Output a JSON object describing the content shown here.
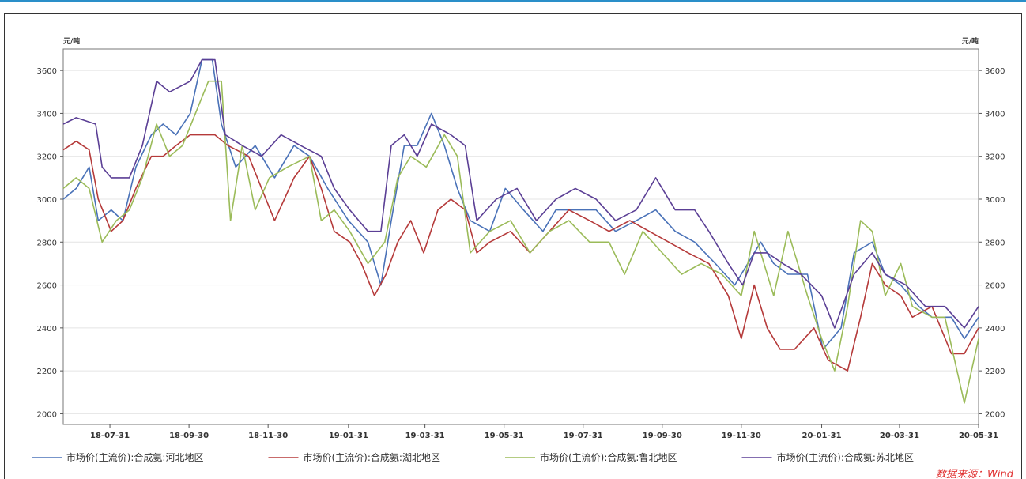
{
  "chart_data": {
    "type": "line",
    "y_unit_left": "元/吨",
    "y_unit_right": "元/吨",
    "ylim": [
      1950,
      3700
    ],
    "y_ticks": [
      2000,
      2200,
      2400,
      2600,
      2800,
      3000,
      3200,
      3400,
      3600
    ],
    "x_range": [
      "2018-06-25",
      "2020-05-31"
    ],
    "x_ticks": [
      "18-07-31",
      "18-09-30",
      "18-11-30",
      "19-01-31",
      "19-03-31",
      "19-05-31",
      "19-07-31",
      "19-09-30",
      "19-11-30",
      "20-01-31",
      "20-03-31",
      "20-05-31"
    ],
    "grid": "horizontal",
    "legend_position": "bottom",
    "source": "数据来源：Wind",
    "series": [
      {
        "name": "市场价(主流价):合成氨:河北地区",
        "color": "#4a72b8",
        "points": [
          [
            "2018-06-25",
            3000
          ],
          [
            "2018-07-05",
            3050
          ],
          [
            "2018-07-15",
            3150
          ],
          [
            "2018-07-22",
            2900
          ],
          [
            "2018-08-01",
            2950
          ],
          [
            "2018-08-10",
            2900
          ],
          [
            "2018-08-20",
            3150
          ],
          [
            "2018-09-01",
            3300
          ],
          [
            "2018-09-10",
            3350
          ],
          [
            "2018-09-20",
            3300
          ],
          [
            "2018-10-01",
            3400
          ],
          [
            "2018-10-10",
            3650
          ],
          [
            "2018-10-18",
            3650
          ],
          [
            "2018-10-25",
            3350
          ],
          [
            "2018-11-05",
            3150
          ],
          [
            "2018-11-20",
            3250
          ],
          [
            "2018-12-05",
            3100
          ],
          [
            "2018-12-20",
            3250
          ],
          [
            "2019-01-01",
            3200
          ],
          [
            "2019-01-15",
            3050
          ],
          [
            "2019-01-31",
            2900
          ],
          [
            "2019-02-15",
            2800
          ],
          [
            "2019-02-25",
            2600
          ],
          [
            "2019-03-05",
            2900
          ],
          [
            "2019-03-15",
            3250
          ],
          [
            "2019-03-25",
            3250
          ],
          [
            "2019-04-05",
            3400
          ],
          [
            "2019-04-15",
            3250
          ],
          [
            "2019-04-25",
            3050
          ],
          [
            "2019-05-05",
            2900
          ],
          [
            "2019-05-20",
            2850
          ],
          [
            "2019-06-01",
            3050
          ],
          [
            "2019-06-15",
            2950
          ],
          [
            "2019-06-30",
            2850
          ],
          [
            "2019-07-10",
            2950
          ],
          [
            "2019-07-25",
            2950
          ],
          [
            "2019-08-10",
            2950
          ],
          [
            "2019-08-25",
            2850
          ],
          [
            "2019-09-10",
            2900
          ],
          [
            "2019-09-25",
            2950
          ],
          [
            "2019-10-10",
            2850
          ],
          [
            "2019-10-25",
            2800
          ],
          [
            "2019-11-10",
            2700
          ],
          [
            "2019-11-25",
            2600
          ],
          [
            "2019-12-05",
            2700
          ],
          [
            "2019-12-15",
            2800
          ],
          [
            "2019-12-25",
            2700
          ],
          [
            "2020-01-05",
            2650
          ],
          [
            "2020-01-20",
            2650
          ],
          [
            "2020-02-01",
            2300
          ],
          [
            "2020-02-15",
            2400
          ],
          [
            "2020-02-25",
            2750
          ],
          [
            "2020-03-10",
            2800
          ],
          [
            "2020-03-20",
            2650
          ],
          [
            "2020-04-01",
            2600
          ],
          [
            "2020-04-15",
            2500
          ],
          [
            "2020-04-25",
            2450
          ],
          [
            "2020-05-10",
            2450
          ],
          [
            "2020-05-20",
            2350
          ],
          [
            "2020-05-31",
            2450
          ]
        ]
      },
      {
        "name": "市场价(主流价):合成氨:湖北地区",
        "color": "#b53a3a",
        "points": [
          [
            "2018-06-25",
            3230
          ],
          [
            "2018-07-05",
            3270
          ],
          [
            "2018-07-15",
            3230
          ],
          [
            "2018-07-22",
            3000
          ],
          [
            "2018-08-01",
            2850
          ],
          [
            "2018-08-10",
            2900
          ],
          [
            "2018-08-20",
            3050
          ],
          [
            "2018-09-01",
            3200
          ],
          [
            "2018-09-10",
            3200
          ],
          [
            "2018-09-20",
            3250
          ],
          [
            "2018-10-01",
            3300
          ],
          [
            "2018-10-20",
            3300
          ],
          [
            "2018-10-30",
            3250
          ],
          [
            "2018-11-15",
            3200
          ],
          [
            "2018-11-25",
            3050
          ],
          [
            "2018-12-05",
            2900
          ],
          [
            "2018-12-20",
            3100
          ],
          [
            "2019-01-01",
            3200
          ],
          [
            "2019-01-10",
            3050
          ],
          [
            "2019-01-20",
            2850
          ],
          [
            "2019-02-01",
            2800
          ],
          [
            "2019-02-10",
            2700
          ],
          [
            "2019-02-20",
            2550
          ],
          [
            "2019-03-01",
            2650
          ],
          [
            "2019-03-10",
            2800
          ],
          [
            "2019-03-20",
            2900
          ],
          [
            "2019-03-30",
            2750
          ],
          [
            "2019-04-10",
            2950
          ],
          [
            "2019-04-20",
            3000
          ],
          [
            "2019-05-01",
            2950
          ],
          [
            "2019-05-10",
            2750
          ],
          [
            "2019-05-20",
            2800
          ],
          [
            "2019-06-05",
            2850
          ],
          [
            "2019-06-20",
            2750
          ],
          [
            "2019-07-05",
            2850
          ],
          [
            "2019-07-20",
            2950
          ],
          [
            "2019-08-05",
            2900
          ],
          [
            "2019-08-20",
            2850
          ],
          [
            "2019-09-05",
            2900
          ],
          [
            "2019-09-20",
            2850
          ],
          [
            "2019-10-05",
            2800
          ],
          [
            "2019-10-20",
            2750
          ],
          [
            "2019-11-05",
            2700
          ],
          [
            "2019-11-20",
            2550
          ],
          [
            "2019-11-30",
            2350
          ],
          [
            "2019-12-10",
            2600
          ],
          [
            "2019-12-20",
            2400
          ],
          [
            "2019-12-30",
            2300
          ],
          [
            "2020-01-10",
            2300
          ],
          [
            "2020-01-25",
            2400
          ],
          [
            "2020-02-05",
            2250
          ],
          [
            "2020-02-20",
            2200
          ],
          [
            "2020-03-01",
            2450
          ],
          [
            "2020-03-10",
            2700
          ],
          [
            "2020-03-20",
            2600
          ],
          [
            "2020-04-01",
            2550
          ],
          [
            "2020-04-10",
            2450
          ],
          [
            "2020-04-25",
            2500
          ],
          [
            "2020-05-10",
            2280
          ],
          [
            "2020-05-20",
            2280
          ],
          [
            "2020-05-31",
            2400
          ]
        ]
      },
      {
        "name": "市场价(主流价):合成氨:鲁北地区",
        "color": "#9bbb59",
        "points": [
          [
            "2018-06-25",
            3050
          ],
          [
            "2018-07-05",
            3100
          ],
          [
            "2018-07-15",
            3050
          ],
          [
            "2018-07-25",
            2800
          ],
          [
            "2018-08-05",
            2900
          ],
          [
            "2018-08-15",
            2950
          ],
          [
            "2018-08-25",
            3100
          ],
          [
            "2018-09-05",
            3350
          ],
          [
            "2018-09-15",
            3200
          ],
          [
            "2018-09-25",
            3250
          ],
          [
            "2018-10-05",
            3400
          ],
          [
            "2018-10-15",
            3550
          ],
          [
            "2018-10-25",
            3550
          ],
          [
            "2018-11-01",
            2900
          ],
          [
            "2018-11-10",
            3250
          ],
          [
            "2018-11-20",
            2950
          ],
          [
            "2018-12-01",
            3100
          ],
          [
            "2018-12-15",
            3150
          ],
          [
            "2019-01-01",
            3200
          ],
          [
            "2019-01-10",
            2900
          ],
          [
            "2019-01-20",
            2950
          ],
          [
            "2019-02-01",
            2850
          ],
          [
            "2019-02-15",
            2700
          ],
          [
            "2019-02-28",
            2800
          ],
          [
            "2019-03-10",
            3100
          ],
          [
            "2019-03-20",
            3200
          ],
          [
            "2019-04-01",
            3150
          ],
          [
            "2019-04-15",
            3300
          ],
          [
            "2019-04-25",
            3200
          ],
          [
            "2019-05-05",
            2750
          ],
          [
            "2019-05-20",
            2850
          ],
          [
            "2019-06-05",
            2900
          ],
          [
            "2019-06-20",
            2750
          ],
          [
            "2019-07-05",
            2850
          ],
          [
            "2019-07-20",
            2900
          ],
          [
            "2019-08-05",
            2800
          ],
          [
            "2019-08-20",
            2800
          ],
          [
            "2019-09-01",
            2650
          ],
          [
            "2019-09-15",
            2850
          ],
          [
            "2019-09-30",
            2750
          ],
          [
            "2019-10-15",
            2650
          ],
          [
            "2019-10-30",
            2700
          ],
          [
            "2019-11-15",
            2650
          ],
          [
            "2019-11-30",
            2550
          ],
          [
            "2019-12-10",
            2850
          ],
          [
            "2019-12-25",
            2550
          ],
          [
            "2020-01-05",
            2850
          ],
          [
            "2020-01-20",
            2550
          ],
          [
            "2020-01-31",
            2350
          ],
          [
            "2020-02-10",
            2200
          ],
          [
            "2020-02-20",
            2500
          ],
          [
            "2020-03-01",
            2900
          ],
          [
            "2020-03-10",
            2850
          ],
          [
            "2020-03-20",
            2550
          ],
          [
            "2020-04-01",
            2700
          ],
          [
            "2020-04-10",
            2500
          ],
          [
            "2020-04-25",
            2450
          ],
          [
            "2020-05-05",
            2450
          ],
          [
            "2020-05-20",
            2050
          ],
          [
            "2020-05-31",
            2350
          ]
        ]
      },
      {
        "name": "市场价(主流价):合成氨:苏北地区",
        "color": "#5b3f95",
        "points": [
          [
            "2018-06-25",
            3350
          ],
          [
            "2018-07-05",
            3380
          ],
          [
            "2018-07-20",
            3350
          ],
          [
            "2018-07-25",
            3150
          ],
          [
            "2018-08-01",
            3100
          ],
          [
            "2018-08-15",
            3100
          ],
          [
            "2018-08-25",
            3250
          ],
          [
            "2018-09-05",
            3550
          ],
          [
            "2018-09-15",
            3500
          ],
          [
            "2018-10-01",
            3550
          ],
          [
            "2018-10-10",
            3650
          ],
          [
            "2018-10-20",
            3650
          ],
          [
            "2018-10-28",
            3300
          ],
          [
            "2018-11-10",
            3250
          ],
          [
            "2018-11-25",
            3200
          ],
          [
            "2018-12-10",
            3300
          ],
          [
            "2018-12-25",
            3250
          ],
          [
            "2019-01-10",
            3200
          ],
          [
            "2019-01-20",
            3050
          ],
          [
            "2019-02-01",
            2950
          ],
          [
            "2019-02-15",
            2850
          ],
          [
            "2019-02-25",
            2850
          ],
          [
            "2019-03-05",
            3250
          ],
          [
            "2019-03-15",
            3300
          ],
          [
            "2019-03-25",
            3200
          ],
          [
            "2019-04-05",
            3350
          ],
          [
            "2019-04-20",
            3300
          ],
          [
            "2019-05-01",
            3250
          ],
          [
            "2019-05-10",
            2900
          ],
          [
            "2019-05-25",
            3000
          ],
          [
            "2019-06-10",
            3050
          ],
          [
            "2019-06-25",
            2900
          ],
          [
            "2019-07-10",
            3000
          ],
          [
            "2019-07-25",
            3050
          ],
          [
            "2019-08-10",
            3000
          ],
          [
            "2019-08-25",
            2900
          ],
          [
            "2019-09-10",
            2950
          ],
          [
            "2019-09-25",
            3100
          ],
          [
            "2019-10-10",
            2950
          ],
          [
            "2019-10-25",
            2950
          ],
          [
            "2019-11-05",
            2850
          ],
          [
            "2019-11-20",
            2700
          ],
          [
            "2019-12-01",
            2600
          ],
          [
            "2019-12-10",
            2750
          ],
          [
            "2019-12-20",
            2750
          ],
          [
            "2020-01-01",
            2700
          ],
          [
            "2020-01-15",
            2650
          ],
          [
            "2020-01-31",
            2550
          ],
          [
            "2020-02-10",
            2400
          ],
          [
            "2020-02-25",
            2650
          ],
          [
            "2020-03-10",
            2750
          ],
          [
            "2020-03-20",
            2650
          ],
          [
            "2020-04-05",
            2600
          ],
          [
            "2020-04-20",
            2500
          ],
          [
            "2020-05-05",
            2500
          ],
          [
            "2020-05-20",
            2400
          ],
          [
            "2020-05-31",
            2500
          ]
        ]
      }
    ]
  }
}
